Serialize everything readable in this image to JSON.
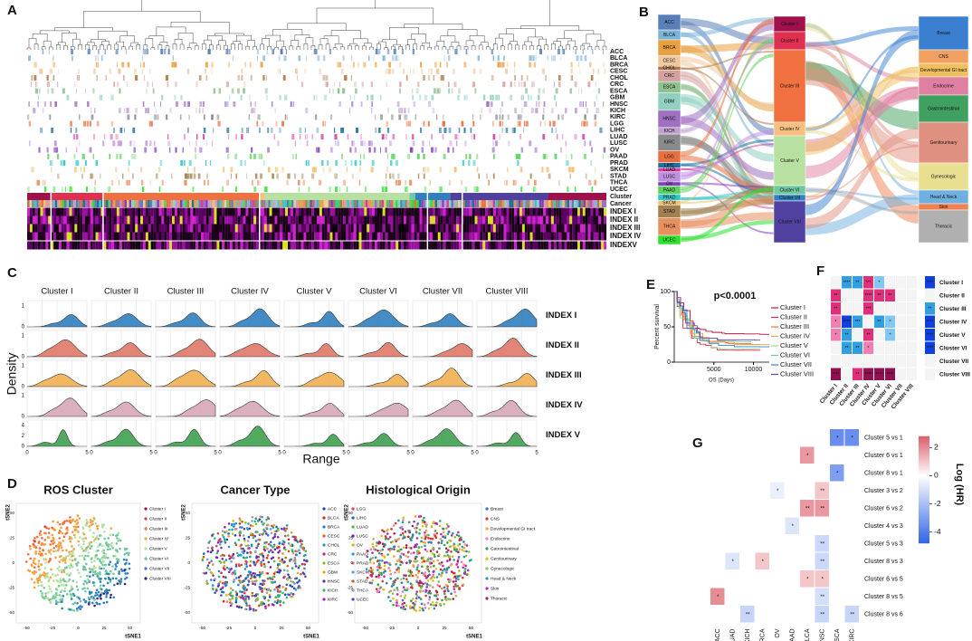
{
  "panels": {
    "A": {
      "label": "A",
      "rows": [
        "ACC",
        "BLCA",
        "BRCA",
        "CESC",
        "CHOL",
        "CRC",
        "ESCA",
        "GBM",
        "HNSC",
        "KICH",
        "KIRC",
        "LGG",
        "LIHC",
        "LUAD",
        "LUSC",
        "OV",
        "PAAD",
        "PRAD",
        "SKCM",
        "STAD",
        "THCA",
        "UCEC"
      ],
      "bottom_rows": [
        "Cluster",
        "Cancer",
        "INDEX I",
        "INDEX II",
        "INDEX III",
        "INDEX IV",
        "INDEXV"
      ]
    },
    "B": {
      "label": "B",
      "left": [
        "ACC",
        "BLCA",
        "BRCA",
        "CESC",
        "CHOL",
        "CRC",
        "ESCA",
        "GBM",
        "HNSC",
        "KICH",
        "KIRC",
        "LGG",
        "LIHC",
        "LUAD",
        "LUSC",
        "OV",
        "PAAD",
        "PRAD",
        "SKCM",
        "STAD",
        "THCA",
        "UCEC"
      ],
      "left_colors": [
        "#5a7fb8",
        "#7cb4d8",
        "#e8a040",
        "#f0c8a0",
        "#b07848",
        "#d4a0a0",
        "#90c090",
        "#8fd0c0",
        "#9f70c0",
        "#c0a0d0",
        "#8a8a8a",
        "#e87040",
        "#2070a0",
        "#d040a0",
        "#c090e0",
        "#8040c0",
        "#60d060",
        "#30c8c8",
        "#f0c070",
        "#a08050",
        "#e89060",
        "#30e030"
      ],
      "middle": [
        "Cluster I",
        "Cluster II",
        "Cluster III",
        "Cluster IV",
        "Cluster V",
        "Cluster VI",
        "Cluster VII",
        "Cluster VIII"
      ],
      "middle_colors": [
        "#a0104a",
        "#e03050",
        "#f07040",
        "#f8c080",
        "#b8e0a0",
        "#70c8a0",
        "#3080c0",
        "#5040a0"
      ],
      "right": [
        "Breast",
        "CNS",
        "Developmental GI tract",
        "Endocrine",
        "Gastrointestinal",
        "Genitourinary",
        "Gynecologic",
        "Head & Neck",
        "Skin",
        "Thoracic"
      ],
      "right_colors": [
        "#3a7fd0",
        "#f0a060",
        "#f0c060",
        "#e080a0",
        "#40a060",
        "#e09080",
        "#e8e090",
        "#70b0e0",
        "#f08050",
        "#b0b0b0"
      ]
    },
    "C": {
      "label": "C",
      "columns": [
        "Cluster I",
        "Cluster II",
        "Cluster III",
        "Cluster IV",
        "Cluster V",
        "Cluster VI",
        "Cluster VII",
        "Cluster VIII"
      ],
      "rows": [
        "INDEX I",
        "INDEX II",
        "INDEX III",
        "INDEX IV",
        "INDEX V"
      ],
      "row_colors": [
        "#3080c0",
        "#e07868",
        "#f0b050",
        "#d8a8b8",
        "#40a050"
      ],
      "row_yticks": [
        [
          0,
          1
        ],
        [
          0,
          1
        ],
        [
          0,
          1
        ],
        [
          0,
          1
        ],
        [
          0,
          2,
          4
        ]
      ],
      "xticks": [
        0,
        5
      ],
      "ylabel": "Density",
      "xlabel": "Range"
    },
    "D": {
      "label": "D",
      "plots": [
        {
          "title": "ROS Cluster",
          "legend": [
            "Cluster I",
            "Cluster II",
            "Cluster III",
            "Cluster IV",
            "Cluster V",
            "Cluster VI",
            "Cluster VII",
            "Cluster VIII"
          ],
          "colors": [
            "#a0104a",
            "#e03050",
            "#f07040",
            "#f8a040",
            "#b8e0a0",
            "#70c8a0",
            "#3080c0",
            "#302080"
          ]
        },
        {
          "title": "Cancer Type",
          "legend": [
            "ACC",
            "BLCA",
            "BRCA",
            "CESC",
            "CHOL",
            "CRC",
            "ESCA",
            "GBM",
            "HNSC",
            "KICH",
            "KIRC",
            "LGG",
            "LIHC",
            "LUAD",
            "LUSC",
            "OV",
            "PAAD",
            "PRAD",
            "SKCM",
            "STAD",
            "THCA",
            "UCEC"
          ],
          "colors": [
            "#2040c0",
            "#e02020",
            "#2080e0",
            "#e06020",
            "#20a0a0",
            "#c02080",
            "#80c020",
            "#e0a020",
            "#4040a0",
            "#20c080",
            "#a020c0",
            "#e04060",
            "#2060c0",
            "#40c040",
            "#8020a0",
            "#c0c020",
            "#20a0e0",
            "#e08080",
            "#60a0c0",
            "#c06020",
            "#a0a0a0",
            "#6040c0"
          ]
        },
        {
          "title": "Histological Origin",
          "legend": [
            "Breast",
            "CNS",
            "Developmental GI tract",
            "Endocrine",
            "Gatrointestinal",
            "Genitourinary",
            "Gynecologic",
            "Head & Neck",
            "Skin",
            "Thoracic"
          ],
          "colors": [
            "#3a70c0",
            "#e03030",
            "#f0a040",
            "#e080c0",
            "#40a050",
            "#e0c020",
            "#90c040",
            "#20a0a0",
            "#c020c0",
            "#a02060"
          ]
        }
      ],
      "xticks": [
        -50,
        -25,
        0,
        25,
        50
      ],
      "yticks": [
        -50,
        -25,
        0,
        25,
        50
      ],
      "xlabel": "tSNE1",
      "ylabel": "tSNE2"
    },
    "E": {
      "label": "E",
      "pvalue": "p<0.0001",
      "ylabel": "Percent survival",
      "xlabel": "OS (Days)",
      "yticks": [
        0,
        50,
        100
      ],
      "xticks": [
        5000,
        10000
      ],
      "xlim": [
        0,
        12000
      ],
      "ylim": [
        0,
        100
      ],
      "legend": [
        "Cluster I",
        "Cluster II",
        "Cluster III",
        "Cluster IV",
        "Cluster V",
        "Cluster VI",
        "Cluster VII",
        "Cluster VIII"
      ],
      "colors": [
        "#c01040",
        "#e03050",
        "#f07040",
        "#f8a040",
        "#a0d890",
        "#70c8a0",
        "#3080c0",
        "#6040a0"
      ]
    },
    "F": {
      "label": "F",
      "rows": [
        "Cluster I",
        "Cluster II",
        "Cluster III",
        "Cluster IV",
        "Cluster V",
        "Cluster VI",
        "Cluster VII",
        "Cluster VIII"
      ],
      "cells": [
        [
          null,
          {
            "label": "****",
            "color": "#30a0e0"
          },
          {
            "label": "**",
            "color": "#30a0e0"
          },
          {
            "label": "***",
            "color": "#e0307a"
          },
          {
            "label": "*",
            "color": "#80c8f0"
          },
          null,
          null,
          null,
          {
            "label": "****",
            "color": "#1040e0"
          }
        ],
        [
          {
            "label": "**",
            "color": "#e0307a"
          },
          null,
          null,
          {
            "label": "****",
            "color": "#e0307a"
          },
          {
            "label": "**",
            "color": "#e0307a"
          },
          {
            "label": "**",
            "color": "#e0307a"
          },
          null,
          null,
          null
        ],
        [
          {
            "label": "**",
            "color": "#e0307a"
          },
          null,
          null,
          {
            "label": "***",
            "color": "#e0307a"
          },
          null,
          null,
          null,
          null,
          {
            "label": "**",
            "color": "#30a0e0"
          }
        ],
        [
          {
            "label": "*",
            "color": "#f080b0"
          },
          {
            "label": "****",
            "color": "#1040e0"
          },
          {
            "label": "***",
            "color": "#30a0e0"
          },
          null,
          {
            "label": "**",
            "color": "#30a0e0"
          },
          {
            "label": "*",
            "color": "#80c8f0"
          },
          null,
          null,
          {
            "label": "****",
            "color": "#1040e0"
          }
        ],
        [
          {
            "label": "*",
            "color": "#f080b0"
          },
          {
            "label": "**",
            "color": "#30a0e0"
          },
          null,
          {
            "label": "**",
            "color": "#e0307a"
          },
          null,
          {
            "label": "*",
            "color": "#80c8f0"
          },
          null,
          null,
          {
            "label": "****",
            "color": "#1040e0"
          }
        ],
        [
          null,
          {
            "label": "**",
            "color": "#30a0e0"
          },
          {
            "label": "**",
            "color": "#30a0e0"
          },
          {
            "label": "*",
            "color": "#f080b0"
          },
          null,
          null,
          null,
          null,
          {
            "label": "****",
            "color": "#1040e0"
          }
        ],
        [
          null,
          null,
          null,
          null,
          null,
          null,
          null,
          null,
          null
        ],
        [
          {
            "label": "****",
            "color": "#901050"
          },
          null,
          {
            "label": "**",
            "color": "#e0307a"
          },
          {
            "label": "****",
            "color": "#901050"
          },
          {
            "label": "****",
            "color": "#901050"
          },
          {
            "label": "****",
            "color": "#901050"
          },
          null,
          null,
          null
        ]
      ]
    },
    "G": {
      "label": "G",
      "rows": [
        "Cluster 5 vs 1",
        "Cluster 6 vs 1",
        "Cluster 8 vs 1",
        "Cluster 3 vs 2",
        "Cluster 6 vs 2",
        "Cluster 4 vs 3",
        "Cluster 5 vs 3",
        "Cluster 8 vs 3",
        "Cluster 6 vs 5",
        "Cluster 8 vs 5",
        "Cluster 8 vs 6"
      ],
      "columns": [
        "ACC",
        "LUAD",
        "KICH",
        "BRCA",
        "OV",
        "PAAD",
        "BLCA",
        "HNSC",
        "ESCA",
        "KIRC"
      ],
      "values": [
        [
          null,
          null,
          null,
          null,
          null,
          null,
          null,
          null,
          -3.5,
          -3.5
        ],
        [
          null,
          null,
          null,
          null,
          null,
          null,
          1.8,
          null,
          null,
          null
        ],
        [
          null,
          null,
          null,
          null,
          null,
          null,
          null,
          null,
          -3,
          null
        ],
        [
          null,
          null,
          null,
          null,
          -0.5,
          null,
          null,
          1,
          null,
          null
        ],
        [
          null,
          null,
          null,
          null,
          null,
          null,
          1.8,
          1.8,
          null,
          null
        ],
        [
          null,
          null,
          null,
          null,
          null,
          -0.8,
          null,
          null,
          null,
          null
        ],
        [
          null,
          null,
          null,
          null,
          null,
          null,
          null,
          -1.2,
          null,
          null
        ],
        [
          null,
          -0.8,
          null,
          1,
          null,
          null,
          null,
          -1.2,
          null,
          null
        ],
        [
          null,
          null,
          null,
          null,
          null,
          null,
          1,
          1,
          null,
          null
        ],
        [
          2,
          null,
          null,
          null,
          null,
          null,
          null,
          -1,
          null,
          null
        ],
        [
          null,
          null,
          -1.3,
          null,
          null,
          null,
          null,
          -1.3,
          null,
          -1.3
        ]
      ],
      "value_labels": [
        [
          null,
          null,
          null,
          null,
          null,
          null,
          null,
          null,
          "*",
          "*"
        ],
        [
          null,
          null,
          null,
          null,
          null,
          null,
          "*",
          null,
          null,
          null
        ],
        [
          null,
          null,
          null,
          null,
          null,
          null,
          null,
          null,
          "*",
          null
        ],
        [
          null,
          null,
          null,
          null,
          "*",
          null,
          null,
          "**",
          null,
          null
        ],
        [
          null,
          null,
          null,
          null,
          null,
          null,
          "**",
          "**",
          null,
          null
        ],
        [
          null,
          null,
          null,
          null,
          null,
          "*",
          null,
          null,
          null,
          null
        ],
        [
          null,
          null,
          null,
          null,
          null,
          null,
          null,
          "**",
          null,
          null
        ],
        [
          null,
          "*",
          null,
          "*",
          null,
          null,
          null,
          "**",
          null,
          null
        ],
        [
          null,
          null,
          null,
          null,
          null,
          null,
          "*",
          "*",
          null,
          null
        ],
        [
          "*",
          null,
          null,
          null,
          null,
          null,
          null,
          "**",
          null,
          null
        ],
        [
          null,
          null,
          "**",
          null,
          null,
          null,
          null,
          "**",
          null,
          "**"
        ]
      ],
      "clim": [
        -4.8,
        2.8
      ],
      "cticks": [
        2,
        0,
        -2,
        -4
      ],
      "colorbar_label": "Log (HR)"
    }
  }
}
